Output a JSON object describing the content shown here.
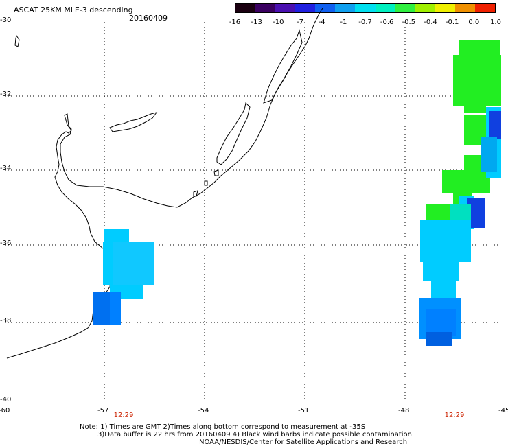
{
  "header": {
    "title": "ASCAT 25KM MLE-3 descending",
    "date": "20160409"
  },
  "colorbar": {
    "labels": [
      "-16",
      "-13",
      "-10",
      "-7",
      "-4",
      "-1",
      "-0.7",
      "-0.6",
      "-0.5",
      "-0.4",
      "-0.1",
      "0.0",
      "1.0"
    ],
    "colors": [
      "#1a0010",
      "#3a0060",
      "#4a10b0",
      "#2020e0",
      "#1060f0",
      "#10a0f0",
      "#00e0f0",
      "#00f0c0",
      "#30f040",
      "#a0f000",
      "#f0f000",
      "#f09000",
      "#f02000"
    ]
  },
  "axes": {
    "lat_labels": [
      "-30",
      "-32",
      "-34",
      "-36",
      "-38",
      "-40"
    ],
    "lon_labels": [
      "-60",
      "-57",
      "-54",
      "-51",
      "-48",
      "-45"
    ]
  },
  "times": [
    "12:29",
    "12:29"
  ],
  "notes": [
    "Note: 1) Times are GMT 2)Times along bottom correspond to measurement at -35S",
    "3)Data buffer is 22 hrs from 20160409 4) Black wind barbs indicate possible contamination",
    "NOAA/NESDIS/Center for Satellite Applications and Research"
  ],
  "swath_colors": {
    "green": "#22ee22",
    "cyan": "#00ccff",
    "blue": "#0080ff",
    "dark_blue": "#1040e0",
    "teal": "#00e0c0"
  }
}
